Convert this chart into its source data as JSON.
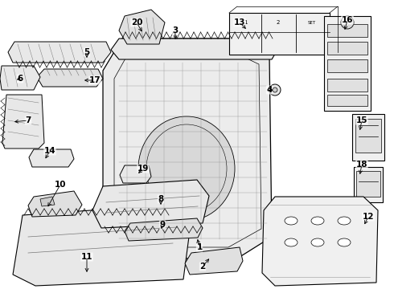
{
  "background_color": "#ffffff",
  "line_color": "#000000",
  "figsize": [
    4.9,
    3.6
  ],
  "dpi": 100,
  "labels": {
    "1": {
      "lpos": [
        248,
        308
      ],
      "apos": [
        245,
        295
      ]
    },
    "2": {
      "lpos": [
        252,
        332
      ],
      "apos": [
        262,
        320
      ]
    },
    "3": {
      "lpos": [
        218,
        38
      ],
      "apos": [
        218,
        52
      ]
    },
    "4": {
      "lpos": [
        335,
        112
      ],
      "apos": [
        342,
        112
      ]
    },
    "5": {
      "lpos": [
        108,
        65
      ],
      "apos": [
        108,
        75
      ]
    },
    "6": {
      "lpos": [
        25,
        98
      ],
      "apos": [
        18,
        100
      ]
    },
    "7": {
      "lpos": [
        35,
        150
      ],
      "apos": [
        15,
        152
      ]
    },
    "8": {
      "lpos": [
        200,
        248
      ],
      "apos": [
        200,
        258
      ]
    },
    "9": {
      "lpos": [
        202,
        280
      ],
      "apos": [
        200,
        288
      ]
    },
    "10": {
      "lpos": [
        75,
        230
      ],
      "apos": [
        58,
        260
      ]
    },
    "11": {
      "lpos": [
        108,
        320
      ],
      "apos": [
        108,
        342
      ]
    },
    "12": {
      "lpos": [
        458,
        270
      ],
      "apos": [
        452,
        282
      ]
    },
    "13": {
      "lpos": [
        298,
        28
      ],
      "apos": [
        308,
        38
      ]
    },
    "14": {
      "lpos": [
        62,
        188
      ],
      "apos": [
        55,
        200
      ]
    },
    "15": {
      "lpos": [
        450,
        150
      ],
      "apos": [
        447,
        165
      ]
    },
    "16": {
      "lpos": [
        432,
        25
      ],
      "apos": [
        428,
        40
      ]
    },
    "17": {
      "lpos": [
        118,
        100
      ],
      "apos": [
        102,
        100
      ]
    },
    "18": {
      "lpos": [
        450,
        205
      ],
      "apos": [
        447,
        220
      ]
    },
    "19": {
      "lpos": [
        178,
        210
      ],
      "apos": [
        170,
        218
      ]
    },
    "20": {
      "lpos": [
        170,
        28
      ],
      "apos": [
        178,
        42
      ]
    }
  }
}
